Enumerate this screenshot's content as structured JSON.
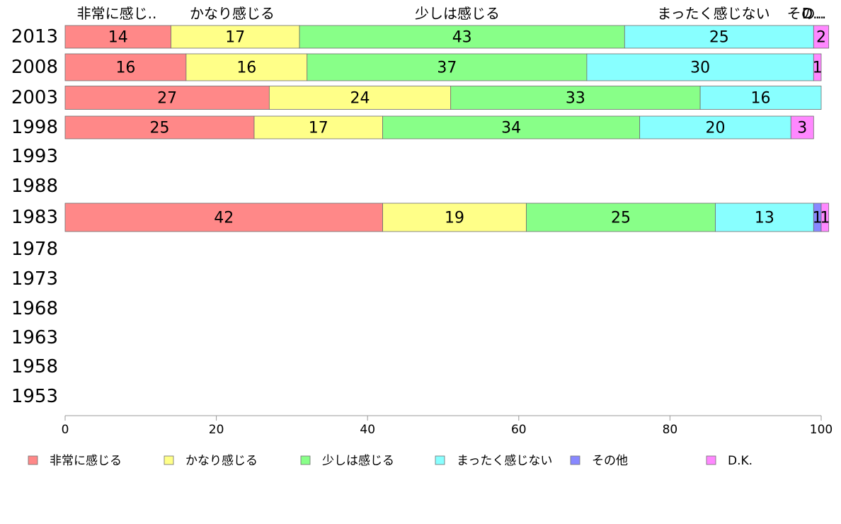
{
  "chart_data": {
    "type": "bar",
    "orientation": "horizontal",
    "stacked": true,
    "categories": [
      "2013",
      "2008",
      "2003",
      "1998",
      "1993",
      "1988",
      "1983",
      "1978",
      "1973",
      "1968",
      "1963",
      "1958",
      "1953"
    ],
    "series": [
      {
        "name": "非常に感じる",
        "short_label": "非常に感じ..",
        "color": "#ff8888",
        "values": [
          14,
          16,
          27,
          25,
          null,
          null,
          42,
          null,
          null,
          null,
          null,
          null,
          null
        ]
      },
      {
        "name": "かなり感じる",
        "short_label": "かなり感じる",
        "color": "#ffff88",
        "values": [
          17,
          16,
          24,
          17,
          null,
          null,
          19,
          null,
          null,
          null,
          null,
          null,
          null
        ]
      },
      {
        "name": "少しは感じる",
        "short_label": "少しは感じる",
        "color": "#88ff88",
        "values": [
          43,
          37,
          33,
          34,
          null,
          null,
          25,
          null,
          null,
          null,
          null,
          null,
          null
        ]
      },
      {
        "name": "まったく感じない",
        "short_label": "まったく感じない",
        "color": "#88ffff",
        "values": [
          25,
          30,
          16,
          20,
          null,
          null,
          13,
          null,
          null,
          null,
          null,
          null,
          null
        ]
      },
      {
        "name": "その他",
        "short_label": "その..",
        "color": "#8888ff",
        "values": [
          0,
          0,
          0,
          0,
          null,
          null,
          1,
          null,
          null,
          null,
          null,
          null,
          null
        ]
      },
      {
        "name": "D.K.",
        "short_label": "D...",
        "color": "#ff88ff",
        "values": [
          2,
          1,
          0,
          3,
          null,
          null,
          1,
          null,
          null,
          null,
          null,
          null,
          null
        ]
      }
    ],
    "x_ticks": [
      "0",
      "20",
      "40",
      "60",
      "80",
      "100"
    ],
    "xlim": [
      0,
      100
    ],
    "grid": false,
    "legend_position": "bottom"
  }
}
